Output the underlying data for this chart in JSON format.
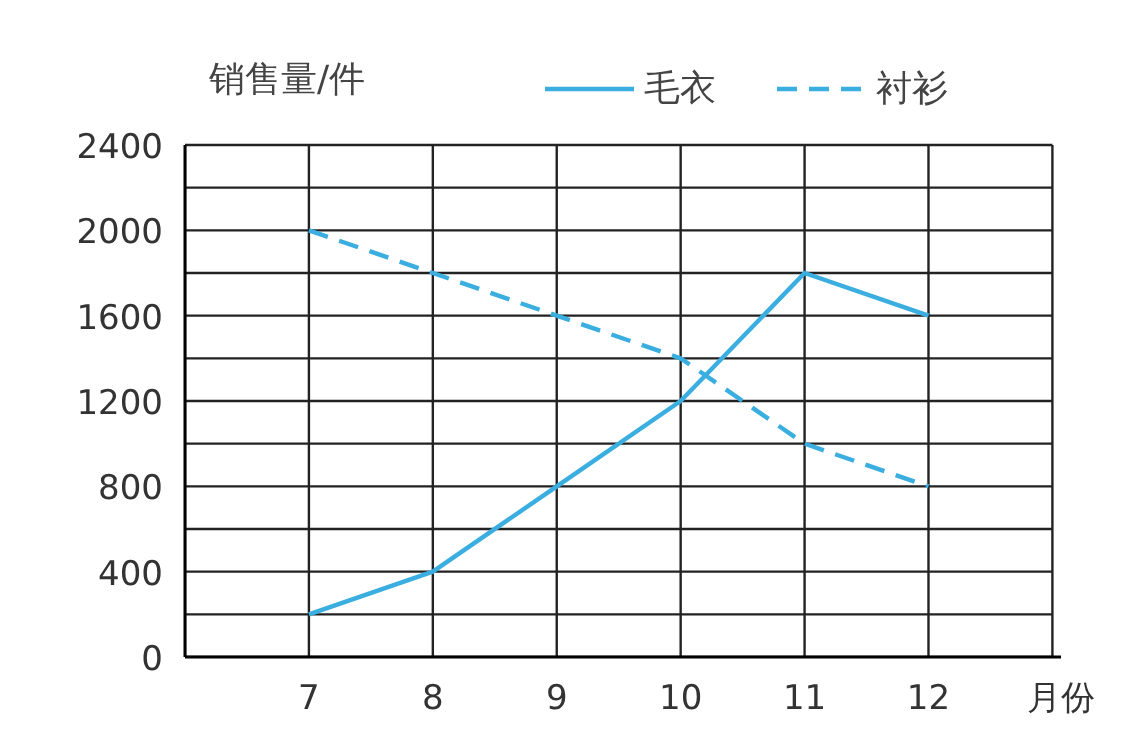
{
  "chart_data": {
    "type": "line",
    "xlabel": "月份",
    "ylabel": "销售量/件",
    "x": [
      7,
      8,
      9,
      10,
      11,
      12
    ],
    "series": [
      {
        "name": "毛衣",
        "color": "#3aaee0",
        "values": [
          200,
          400,
          800,
          1200,
          1800,
          1600
        ],
        "line_style": "solid"
      },
      {
        "name": "衬衫",
        "color": "#3aaee0",
        "values": [
          2000,
          1800,
          1600,
          1400,
          1000,
          800
        ],
        "line_style": "dashed"
      }
    ],
    "xlim": [
      6,
      13
    ],
    "xticks": [
      7,
      8,
      9,
      10,
      11,
      12
    ],
    "ylim": [
      0,
      2400
    ],
    "yticks": [
      0,
      {
        "value": 200,
        "label": null
      },
      400,
      {
        "value": 600,
        "label": null
      },
      800,
      {
        "value": 1000,
        "label": null
      },
      1200,
      {
        "value": 1400,
        "label": null
      },
      1600,
      {
        "value": 1800,
        "label": null
      },
      2000,
      {
        "value": 2200,
        "label": null
      },
      2400
    ],
    "grid": true,
    "legend": "top",
    "marker": "none"
  }
}
